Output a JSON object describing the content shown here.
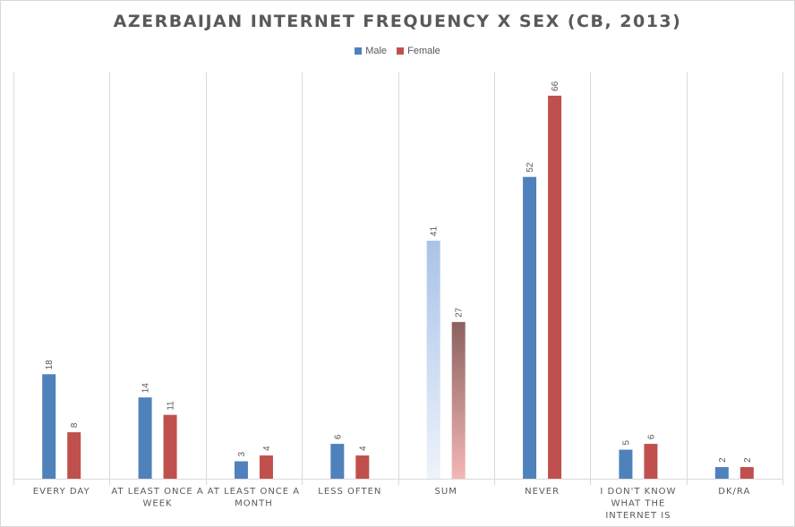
{
  "chart_data": {
    "type": "bar",
    "title": "AZERBAIJAN INTERNET FREQUENCY X SEX (CB, 2013)",
    "categories": [
      [
        "EVERY DAY"
      ],
      [
        "AT LEAST ONCE A",
        "WEEK"
      ],
      [
        "AT LEAST ONCE A",
        "MONTH"
      ],
      [
        "LESS OFTEN"
      ],
      [
        "SUM"
      ],
      [
        "NEVER"
      ],
      [
        "I DON'T KNOW",
        "WHAT THE",
        "INTERNET IS"
      ],
      [
        "DK/RA"
      ]
    ],
    "series": [
      {
        "name": "Male",
        "values": [
          18,
          14,
          3,
          6,
          41,
          52,
          5,
          2
        ]
      },
      {
        "name": "Female",
        "values": [
          8,
          11,
          4,
          4,
          27,
          66,
          6,
          2
        ]
      }
    ],
    "ylim": [
      0,
      70
    ],
    "grid": "vertical category separators",
    "legend_position": "top",
    "colors": {
      "male": "#4f81bd",
      "female": "#c0504d",
      "sum_male_gradient": [
        "#a9c3e8",
        "#eef3fb"
      ],
      "sum_female_gradient": [
        "#8b6160",
        "#f3b7b5"
      ],
      "gridline": "#d9d9d9",
      "text": "#595959"
    }
  }
}
